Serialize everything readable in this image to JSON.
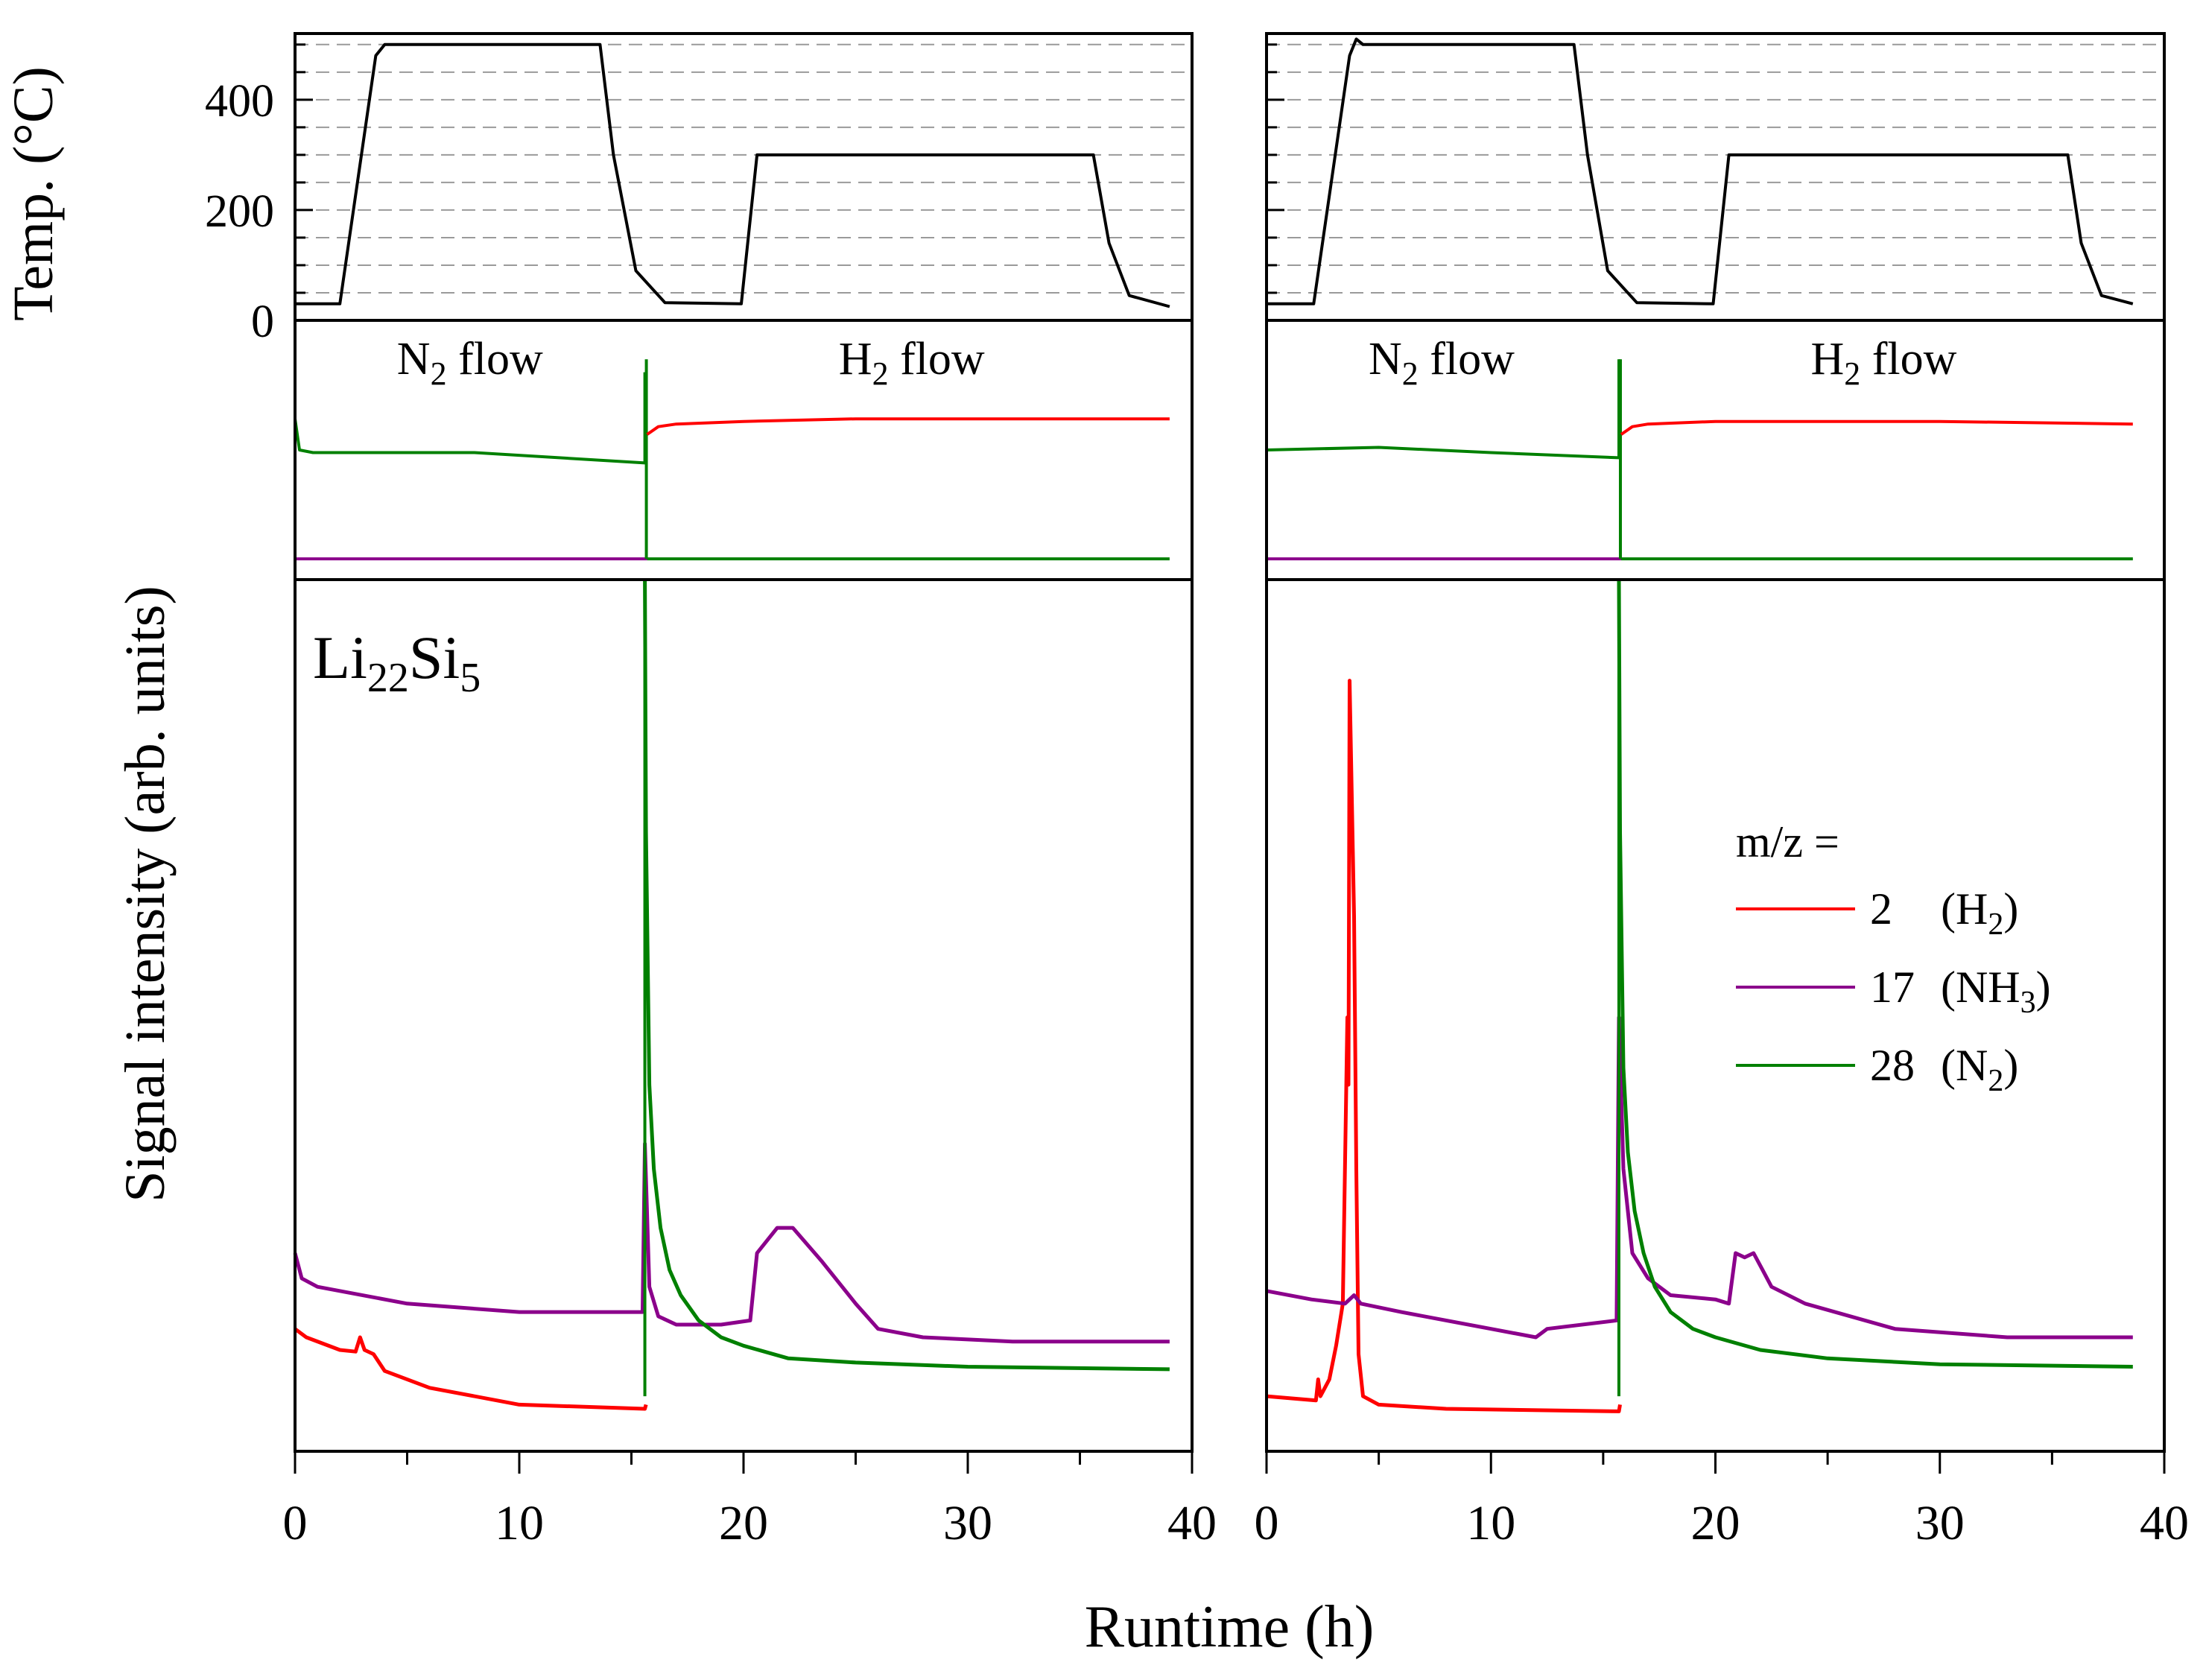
{
  "figure": {
    "sample_label": {
      "base": "Li",
      "sub1": "22",
      "mid": "Si",
      "sub2": "5"
    },
    "x_title": "Runtime (h)",
    "temp_y_title": "Temp. (°C)",
    "signal_y_title": "Signal intensity (arb. units)",
    "flow_labels": [
      {
        "base": "N",
        "sub": "2",
        "rest": " flow"
      },
      {
        "base": "H",
        "sub": "2",
        "rest": " flow"
      }
    ],
    "legend": {
      "title": "m/z =",
      "entries": [
        {
          "mz": "2",
          "label_base": "(H",
          "label_sub": "2",
          "label_end": ")",
          "color": "#ff0000"
        },
        {
          "mz": "17",
          "label_base": "(NH",
          "label_sub": "3",
          "label_end": ")",
          "color": "#8b008b"
        },
        {
          "mz": "28",
          "label_base": "(N",
          "label_sub": "2",
          "label_end": ")",
          "color": "#008000"
        }
      ]
    },
    "colors": {
      "h2": "#ff0000",
      "nh3": "#8b008b",
      "n2": "#008000",
      "temp": "#000000",
      "grid": "#9a9a9a"
    }
  },
  "chart_data": [
    {
      "type": "line",
      "panel": "left",
      "title": "Li22Si5",
      "xlabel": "Runtime (h)",
      "xlim": [
        0,
        40
      ],
      "x_ticks": [
        "0",
        "10",
        "20",
        "30",
        "40"
      ],
      "temperature": {
        "ylabel": "Temp. (°C)",
        "ylim": [
          0,
          520
        ],
        "y_ticks": [
          "0",
          "200",
          "400"
        ],
        "gridlines": [
          50,
          100,
          150,
          200,
          250,
          300,
          350,
          400,
          450,
          500
        ],
        "x": [
          0,
          2,
          3.6,
          4,
          13.6,
          14.2,
          15.2,
          16.5,
          19.9,
          20.6,
          35.6,
          36.3,
          37.2,
          39
        ],
        "y": [
          30,
          30,
          480,
          500,
          500,
          300,
          90,
          32,
          30,
          300,
          300,
          140,
          45,
          25
        ]
      },
      "flow_segment": {
        "x": [
          0,
          0.2,
          0.8,
          8,
          15.6,
          15.6,
          15.7,
          16.2,
          20,
          25,
          30,
          39
        ],
        "n2_y": [
          0.62,
          0.5,
          0.49,
          0.49,
          0.45,
          0.8,
          null,
          null,
          null,
          null,
          null,
          null
        ],
        "h2_x": [
          15.7,
          16.2,
          17,
          20,
          25,
          30,
          39
        ],
        "h2_y": [
          0.56,
          0.59,
          0.6,
          0.61,
          0.62,
          0.62,
          0.62
        ],
        "nh3_y": 0.08,
        "n2_after_y": 0.08
      },
      "series": [
        {
          "name": "2 (H2)",
          "x": [
            0,
            0.5,
            2,
            2.7,
            2.9,
            3.1,
            3.5,
            4,
            6,
            10,
            15.6,
            15.65
          ],
          "y": [
            0.11,
            0.1,
            0.085,
            0.083,
            0.1,
            0.085,
            0.08,
            0.06,
            0.04,
            0.02,
            0.015,
            0.02
          ]
        },
        {
          "name": "17 (NH3)",
          "x": [
            0,
            0.3,
            1,
            5,
            10,
            15.5,
            15.6,
            15.8,
            16.2,
            17,
            19,
            20.3,
            20.6,
            21.5,
            22.2,
            23.5,
            25,
            26,
            28,
            32,
            39
          ],
          "y": [
            0.2,
            0.17,
            0.16,
            0.14,
            0.13,
            0.13,
            0.33,
            0.16,
            0.125,
            0.115,
            0.115,
            0.12,
            0.2,
            0.23,
            0.23,
            0.19,
            0.14,
            0.11,
            0.1,
            0.095,
            0.095
          ]
        },
        {
          "name": "28 (N2)",
          "x": [
            15.6,
            15.65,
            15.8,
            16,
            16.3,
            16.7,
            17.2,
            18,
            19,
            20,
            22,
            25,
            30,
            39
          ],
          "y": [
            1.0,
            0.7,
            0.4,
            0.3,
            0.23,
            0.18,
            0.15,
            0.12,
            0.1,
            0.09,
            0.075,
            0.07,
            0.065,
            0.062
          ]
        }
      ]
    },
    {
      "type": "line",
      "panel": "right",
      "title": "",
      "xlabel": "Runtime (h)",
      "xlim": [
        0,
        40
      ],
      "x_ticks": [
        "0",
        "10",
        "20",
        "30",
        "40"
      ],
      "temperature": {
        "ylim": [
          0,
          520
        ],
        "gridlines": [
          50,
          100,
          150,
          200,
          250,
          300,
          350,
          400,
          450,
          500
        ],
        "x": [
          0,
          2.1,
          3.7,
          4,
          4.3,
          13.7,
          14.3,
          15.2,
          16.5,
          19.9,
          20.6,
          35.7,
          36.3,
          37.2,
          38.6
        ],
        "y": [
          30,
          30,
          480,
          510,
          500,
          500,
          300,
          90,
          32,
          30,
          300,
          300,
          140,
          45,
          30
        ]
      },
      "flow_segment": {
        "x": [
          0,
          5,
          10,
          15.7,
          15.7
        ],
        "n2_y": [
          0.5,
          0.51,
          0.49,
          0.47,
          0.85
        ],
        "h2_x": [
          15.8,
          16.3,
          17,
          20,
          25,
          30,
          38.6
        ],
        "h2_y": [
          0.56,
          0.59,
          0.6,
          0.61,
          0.61,
          0.61,
          0.6
        ],
        "nh3_y": 0.08,
        "n2_after_y": 0.08
      },
      "series": [
        {
          "name": "2 (H2)",
          "x": [
            0,
            2.2,
            2.3,
            2.4,
            2.6,
            2.8,
            3.1,
            3.4,
            3.6,
            3.65,
            3.7,
            3.9,
            4,
            4.1,
            4.3,
            5,
            8,
            15.7,
            15.75
          ],
          "y": [
            0.03,
            0.025,
            0.05,
            0.03,
            0.04,
            0.05,
            0.09,
            0.14,
            0.48,
            0.4,
            0.88,
            0.6,
            0.3,
            0.08,
            0.03,
            0.02,
            0.015,
            0.012,
            0.02
          ]
        },
        {
          "name": "17 (NH3)",
          "x": [
            0,
            2,
            3.5,
            3.9,
            4.2,
            6,
            10,
            12,
            12.5,
            15.6,
            15.7,
            15.9,
            16.3,
            17,
            18,
            20,
            20.6,
            20.9,
            21.3,
            21.7,
            22.1,
            22.5,
            24,
            28,
            33,
            38.6
          ],
          "y": [
            0.155,
            0.145,
            0.14,
            0.15,
            0.14,
            0.13,
            0.11,
            0.1,
            0.11,
            0.12,
            0.48,
            0.3,
            0.2,
            0.17,
            0.15,
            0.145,
            0.14,
            0.2,
            0.195,
            0.2,
            0.18,
            0.16,
            0.14,
            0.11,
            0.1,
            0.1
          ]
        },
        {
          "name": "28 (N2)",
          "x": [
            15.7,
            15.75,
            15.9,
            16.1,
            16.4,
            16.8,
            17.3,
            18,
            19,
            20,
            22,
            25,
            30,
            38.6
          ],
          "y": [
            1.0,
            0.7,
            0.42,
            0.32,
            0.25,
            0.2,
            0.16,
            0.13,
            0.11,
            0.1,
            0.085,
            0.075,
            0.068,
            0.065
          ]
        }
      ]
    }
  ]
}
